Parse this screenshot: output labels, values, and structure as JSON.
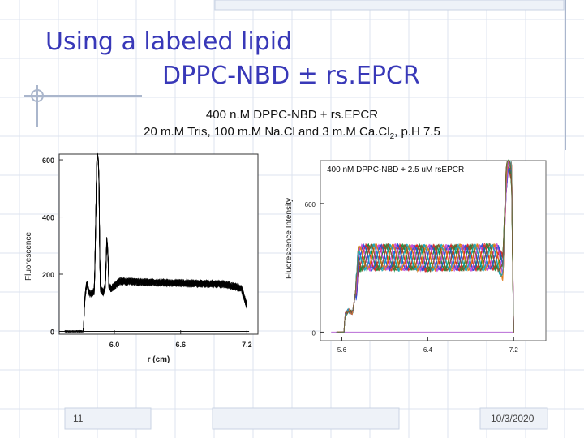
{
  "slide": {
    "title_line1": "Using a labeled lipid",
    "title_line2": "DPPC-NBD ± rs.EPCR",
    "subtitle_line1": "400 n.M DPPC-NBD + rs.EPCR",
    "subtitle_line2_pre": "20 m.M Tris, 100 m.M Na.Cl and 3 m.M Ca.Cl",
    "subtitle_line2_sub": "2",
    "subtitle_line2_post": ", p.H 7.5",
    "slide_number": "11",
    "date": "10/3/2020"
  },
  "chart_data": [
    {
      "type": "line",
      "xlabel": "r (cm)",
      "ylabel": "Fluorescence",
      "x_ticks": [
        6.0,
        6.6,
        7.2
      ],
      "y_ticks": [
        0,
        200,
        400,
        600
      ],
      "xlim": [
        5.5,
        7.3
      ],
      "ylim": [
        -10,
        620
      ],
      "series_color": "#000000",
      "baseline": {
        "x": [
          5.5,
          7.22
        ],
        "y": [
          0,
          0
        ]
      },
      "profile": {
        "x": [
          5.55,
          5.72,
          5.73,
          5.75,
          5.77,
          5.78,
          5.82,
          5.84,
          5.85,
          5.86,
          5.87,
          5.9,
          5.92,
          5.93,
          5.94,
          5.95,
          5.97,
          6.05,
          6.5,
          7.0,
          7.15,
          7.2
        ],
        "y": [
          0,
          0,
          110,
          170,
          135,
          130,
          140,
          600,
          620,
          560,
          150,
          135,
          165,
          320,
          290,
          160,
          150,
          175,
          170,
          165,
          150,
          90
        ]
      }
    },
    {
      "type": "line",
      "title": "400 nM DPPC-NBD + 2.5 uM rsEPCR",
      "ylabel": "Fluorescence Intensity",
      "x_ticks": [
        5.6,
        6.4,
        7.2
      ],
      "y_ticks": [
        0,
        600
      ],
      "xlim": [
        5.4,
        7.5
      ],
      "ylim": [
        -40,
        800
      ],
      "baseline": {
        "x": [
          5.5,
          7.2
        ],
        "y": [
          0,
          0
        ]
      },
      "series_colors": [
        "#1f8a3a",
        "#d12b2b",
        "#2d4fd6",
        "#c44bd6",
        "#e07b1a",
        "#18a7b5",
        "#7d5b2a"
      ],
      "profile": {
        "x": [
          5.55,
          5.62,
          5.63,
          5.66,
          5.7,
          5.74,
          5.75,
          5.8,
          6.4,
          7.05,
          7.1,
          7.13,
          7.15,
          7.18,
          7.2
        ],
        "y": [
          0,
          0,
          80,
          100,
          90,
          230,
          340,
          350,
          345,
          350,
          300,
          700,
          820,
          760,
          0
        ]
      }
    }
  ]
}
